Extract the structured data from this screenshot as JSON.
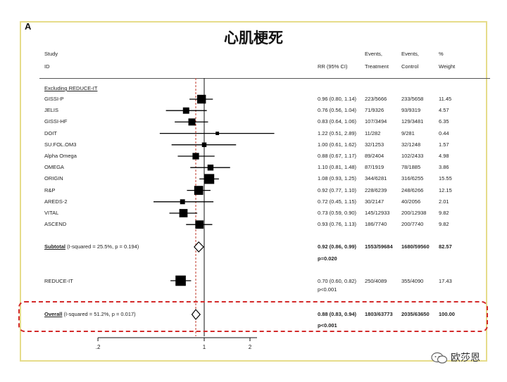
{
  "panel_letter": "A",
  "title": "心肌梗死",
  "header": {
    "study": "Study",
    "id": "ID",
    "rr": "RR (95% CI)",
    "events_t1": "Events,",
    "events_t2": "Treatment",
    "events_c1": "Events,",
    "events_c2": "Control",
    "weight1": "%",
    "weight2": "Weight"
  },
  "group_label": "Excluding REDUCE-IT",
  "colors": {
    "frame": "#e6dc8a",
    "highlight_border": "#d32a2a",
    "dashed_line": "#c0392b",
    "marker": "#000000"
  },
  "chart_data": {
    "type": "forest",
    "x_axis": {
      "scale": "log",
      "reference": 1,
      "tick_values": [
        0.2,
        1,
        2
      ],
      "tick_labels": [
        ".2",
        "1",
        "2"
      ]
    },
    "studies": [
      {
        "name": "GISSI-P",
        "rr": 0.96,
        "lo": 0.8,
        "hi": 1.14,
        "ci_text": "0.96 (0.80, 1.14)",
        "treatment": "223/5666",
        "control": "233/5658",
        "weight": "11.45"
      },
      {
        "name": "JELIS",
        "rr": 0.76,
        "lo": 0.56,
        "hi": 1.04,
        "ci_text": "0.76 (0.56, 1.04)",
        "treatment": "71/9326",
        "control": "93/9319",
        "weight": "4.57"
      },
      {
        "name": "GISSI-HF",
        "rr": 0.83,
        "lo": 0.64,
        "hi": 1.06,
        "ci_text": "0.83 (0.64, 1.06)",
        "treatment": "107/3494",
        "control": "129/3481",
        "weight": "6.35"
      },
      {
        "name": "DOIT",
        "rr": 1.22,
        "lo": 0.51,
        "hi": 2.89,
        "ci_text": "1.22 (0.51, 2.89)",
        "treatment": "11/282",
        "control": "9/281",
        "weight": "0.44"
      },
      {
        "name": "SU.FOL.OM3",
        "rr": 1.0,
        "lo": 0.61,
        "hi": 1.62,
        "ci_text": "1.00 (0.61, 1.62)",
        "treatment": "32/1253",
        "control": "32/1248",
        "weight": "1.57"
      },
      {
        "name": "Alpha Omega",
        "rr": 0.88,
        "lo": 0.67,
        "hi": 1.17,
        "ci_text": "0.88 (0.67, 1.17)",
        "treatment": "89/2404",
        "control": "102/2433",
        "weight": "4.98"
      },
      {
        "name": "OMEGA",
        "rr": 1.1,
        "lo": 0.81,
        "hi": 1.48,
        "ci_text": "1.10 (0.81, 1.48)",
        "treatment": "87/1919",
        "control": "78/1885",
        "weight": "3.86"
      },
      {
        "name": "ORIGIN",
        "rr": 1.08,
        "lo": 0.93,
        "hi": 1.25,
        "ci_text": "1.08 (0.93, 1.25)",
        "treatment": "344/6281",
        "control": "316/6255",
        "weight": "15.55"
      },
      {
        "name": "R&P",
        "rr": 0.92,
        "lo": 0.77,
        "hi": 1.1,
        "ci_text": "0.92 (0.77, 1.10)",
        "treatment": "228/6239",
        "control": "248/6266",
        "weight": "12.15"
      },
      {
        "name": "AREDS-2",
        "rr": 0.72,
        "lo": 0.45,
        "hi": 1.15,
        "ci_text": "0.72 (0.45, 1.15)",
        "treatment": "30/2147",
        "control": "40/2056",
        "weight": "2.01"
      },
      {
        "name": "VITAL",
        "rr": 0.73,
        "lo": 0.59,
        "hi": 0.9,
        "ci_text": "0.73 (0.59, 0.90)",
        "treatment": "145/12933",
        "control": "200/12938",
        "weight": "9.82"
      },
      {
        "name": "ASCEND",
        "rr": 0.93,
        "lo": 0.76,
        "hi": 1.13,
        "ci_text": "0.93 (0.76, 1.13)",
        "treatment": "186/7740",
        "control": "200/7740",
        "weight": "9.82"
      }
    ],
    "subtotal": {
      "label": "Subtotal",
      "stats": "(I-squared = 25.5%, p = 0.194)",
      "rr": 0.92,
      "lo": 0.86,
      "hi": 0.99,
      "ci_text": "0.92 (0.86, 0.99)",
      "treatment": "1553/59684",
      "control": "1680/59560",
      "weight": "82.57",
      "p": "p=0.020"
    },
    "reduce_it": {
      "name": "REDUCE-IT",
      "rr": 0.7,
      "lo": 0.6,
      "hi": 0.82,
      "ci_text": "0.70 (0.60, 0.82)",
      "treatment": "250/4089",
      "control": "355/4090",
      "weight": "17.43",
      "p": "p<0.001"
    },
    "overall": {
      "label": "Overall",
      "stats": "(I-squared = 51.2%, p = 0.017)",
      "rr": 0.88,
      "lo": 0.83,
      "hi": 0.94,
      "ci_text": "0.88 (0.83, 0.94)",
      "treatment": "1803/63773",
      "control": "2035/63650",
      "weight": "100.00",
      "p": "p<0.001"
    }
  },
  "watermark": "欧莎恩"
}
